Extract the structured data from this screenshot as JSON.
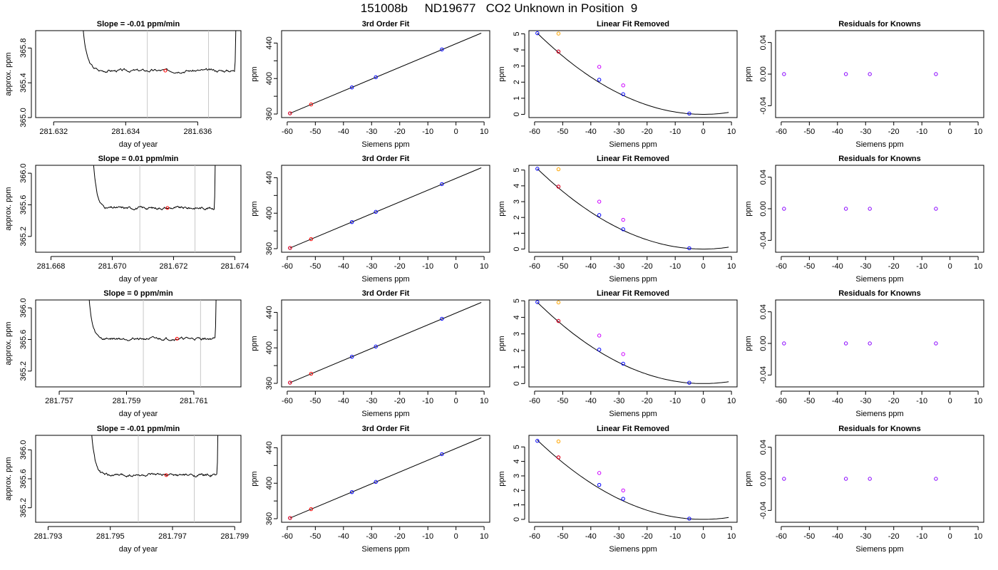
{
  "page": {
    "title": "151008b     ND19677   CO2 Unknown in Position  9"
  },
  "style": {
    "trace_color": "#000000",
    "window_color": "#c8c8c8",
    "point_red": "#ff0000",
    "point_blue": "#0000ff",
    "point_orange": "#ffa500",
    "point_magenta": "#cc00ff",
    "point_purple": "#8800ff"
  },
  "chart_data": [
    {
      "type": "line",
      "panel": "trace",
      "row": 1,
      "title": "Slope =  -0.01  ppm/min",
      "xlabel": "day of year",
      "ylabel": "approx. ppm",
      "xlim": [
        281.6315,
        281.6372
      ],
      "ylim": [
        365.0,
        366.0
      ],
      "xticks": [
        281.632,
        281.634,
        281.636
      ],
      "xtick_labels": [
        "281.632",
        "281.634",
        "281.636"
      ],
      "yticks": [
        365.0,
        365.4,
        365.8
      ],
      "ytick_labels": [
        "365.0",
        "365.4",
        "365.8"
      ],
      "window": [
        281.6346,
        281.6363
      ],
      "marker": {
        "x": 281.6351,
        "y": 365.54
      },
      "trace": {
        "start": 281.6327,
        "end": 281.6371,
        "level": 365.54,
        "noise": 0.014,
        "rise_down": 0.55,
        "rise_up": 0.45
      }
    },
    {
      "type": "line",
      "panel": "fit",
      "row": 1,
      "title": "3rd Order Fit",
      "xlabel": "Siemens ppm",
      "ylabel": "ppm",
      "xlim": [
        -62,
        12
      ],
      "ylim": [
        356,
        454
      ],
      "xticks": [
        -60,
        -50,
        -40,
        -30,
        -20,
        -10,
        0,
        10
      ],
      "xtick_labels": [
        "-60",
        "-50",
        "-40",
        "-30",
        "-20",
        "-10",
        "0",
        "10"
      ],
      "yticks": [
        360,
        400,
        440
      ],
      "ytick_labels": [
        "360",
        "400",
        "440"
      ],
      "yminor": [
        380,
        420
      ],
      "line": {
        "x": [
          -59,
          9
        ],
        "y": [
          360.8,
          451.2
        ]
      },
      "points_blue": {
        "x": [
          -59,
          -37,
          -28.5,
          -5
        ],
        "y": [
          360.8,
          390,
          401.5,
          432.8
        ]
      },
      "points_red": {
        "x": [
          -59,
          -51.5
        ],
        "y": [
          360.8,
          370.8
        ]
      }
    },
    {
      "type": "scatter",
      "panel": "linear",
      "row": 1,
      "title": "Linear Fit Removed",
      "xlabel": "Siemens ppm",
      "ylabel": "ppm",
      "xlim": [
        -62,
        12
      ],
      "ylim": [
        -0.2,
        5.2
      ],
      "xticks": [
        -60,
        -50,
        -40,
        -30,
        -20,
        -10,
        0,
        10
      ],
      "xtick_labels": [
        "-60",
        "-50",
        "-40",
        "-30",
        "-20",
        "-10",
        "0",
        "10"
      ],
      "yticks": [
        0,
        1,
        2,
        3,
        4,
        5
      ],
      "ytick_labels": [
        "0",
        "1",
        "2",
        "3",
        "4",
        "5"
      ],
      "curve": {
        "a": 0.001448,
        "x0": 0,
        "xmin": -59,
        "xmax": 9
      },
      "points_blue": {
        "x": [
          -59,
          -51.5,
          -37,
          -28.5,
          -5
        ],
        "y": [
          5.04,
          3.9,
          2.15,
          1.25,
          0.05
        ]
      },
      "points_red": {
        "x": [
          -51.5
        ],
        "y": [
          3.9
        ]
      },
      "points_orange": {
        "x": [
          -51.5
        ],
        "y": [
          5.02
        ]
      },
      "points_magenta": {
        "x": [
          -37,
          -28.5
        ],
        "y": [
          2.95,
          1.8
        ]
      }
    },
    {
      "type": "scatter",
      "panel": "resid",
      "row": 1,
      "title": "Residuals for Knowns",
      "xlabel": "Siemens ppm",
      "ylabel": "ppm",
      "xlim": [
        -62,
        12
      ],
      "ylim": [
        -0.055,
        0.055
      ],
      "xticks": [
        -60,
        -50,
        -40,
        -30,
        -20,
        -10,
        0,
        10
      ],
      "xtick_labels": [
        "-60",
        "-50",
        "-40",
        "-30",
        "-20",
        "-10",
        "0",
        "10"
      ],
      "yticks": [
        -0.04,
        0,
        0.04
      ],
      "ytick_labels": [
        "-0.04",
        "0.00",
        "0.04"
      ],
      "points": {
        "x": [
          -59,
          -37,
          -28.5,
          -5
        ],
        "y": [
          0,
          0,
          0,
          0
        ]
      }
    },
    {
      "type": "line",
      "panel": "trace",
      "row": 2,
      "title": "Slope =  0.01  ppm/min",
      "xlabel": "day of year",
      "ylabel": "approx. ppm",
      "xlim": [
        281.6675,
        281.6742
      ],
      "ylim": [
        365.0,
        366.1
      ],
      "xticks": [
        281.668,
        281.67,
        281.672,
        281.674
      ],
      "xtick_labels": [
        "281.668",
        "281.670",
        "281.672",
        "281.674"
      ],
      "yticks": [
        365.2,
        365.6,
        366.0
      ],
      "ytick_labels": [
        "365.2",
        "365.6",
        "366.0"
      ],
      "window": [
        281.6709,
        281.6727
      ],
      "marker": {
        "x": 281.6718,
        "y": 365.56
      },
      "trace": {
        "start": 281.6693,
        "end": 281.6734,
        "level": 365.56,
        "noise": 0.014,
        "rise_down": 0.55,
        "rise_up": 0.55
      }
    },
    {
      "type": "line",
      "panel": "fit",
      "row": 2,
      "title": "3rd Order Fit",
      "xlabel": "Siemens ppm",
      "ylabel": "ppm",
      "xlim": [
        -62,
        12
      ],
      "ylim": [
        356,
        454
      ],
      "xticks": [
        -60,
        -50,
        -40,
        -30,
        -20,
        -10,
        0,
        10
      ],
      "xtick_labels": [
        "-60",
        "-50",
        "-40",
        "-30",
        "-20",
        "-10",
        "0",
        "10"
      ],
      "yticks": [
        360,
        400,
        440
      ],
      "ytick_labels": [
        "360",
        "400",
        "440"
      ],
      "yminor": [
        380,
        420
      ],
      "line": {
        "x": [
          -59,
          9
        ],
        "y": [
          360.8,
          451.2
        ]
      },
      "points_blue": {
        "x": [
          -59,
          -37,
          -28.5,
          -5
        ],
        "y": [
          360.8,
          390,
          401.5,
          432.8
        ]
      },
      "points_red": {
        "x": [
          -59,
          -51.5
        ],
        "y": [
          360.8,
          370.8
        ]
      }
    },
    {
      "type": "scatter",
      "panel": "linear",
      "row": 2,
      "title": "Linear Fit Removed",
      "xlabel": "Siemens ppm",
      "ylabel": "ppm",
      "xlim": [
        -62,
        12
      ],
      "ylim": [
        -0.2,
        5.3
      ],
      "xticks": [
        -60,
        -50,
        -40,
        -30,
        -20,
        -10,
        0,
        10
      ],
      "xtick_labels": [
        "-60",
        "-50",
        "-40",
        "-30",
        "-20",
        "-10",
        "0",
        "10"
      ],
      "yticks": [
        0,
        1,
        2,
        3,
        4,
        5
      ],
      "ytick_labels": [
        "0",
        "1",
        "2",
        "3",
        "4",
        "5"
      ],
      "curve": {
        "a": 0.00146,
        "x0": 0,
        "xmin": -59,
        "xmax": 9
      },
      "points_blue": {
        "x": [
          -59,
          -51.5,
          -37,
          -28.5,
          -5
        ],
        "y": [
          5.08,
          3.95,
          2.15,
          1.25,
          0.05
        ]
      },
      "points_red": {
        "x": [
          -51.5
        ],
        "y": [
          3.95
        ]
      },
      "points_orange": {
        "x": [
          -51.5
        ],
        "y": [
          5.05
        ]
      },
      "points_magenta": {
        "x": [
          -37,
          -28.5
        ],
        "y": [
          3.0,
          1.85
        ]
      }
    },
    {
      "type": "scatter",
      "panel": "resid",
      "row": 2,
      "title": "Residuals for Knowns",
      "xlabel": "Siemens ppm",
      "ylabel": "ppm",
      "xlim": [
        -62,
        12
      ],
      "ylim": [
        -0.055,
        0.055
      ],
      "xticks": [
        -60,
        -50,
        -40,
        -30,
        -20,
        -10,
        0,
        10
      ],
      "xtick_labels": [
        "-60",
        "-50",
        "-40",
        "-30",
        "-20",
        "-10",
        "0",
        "10"
      ],
      "yticks": [
        -0.04,
        0,
        0.04
      ],
      "ytick_labels": [
        "-0.04",
        "0.00",
        "0.04"
      ],
      "points": {
        "x": [
          -59,
          -37,
          -28.5,
          -5
        ],
        "y": [
          0,
          0,
          0,
          0
        ]
      }
    },
    {
      "type": "line",
      "panel": "trace",
      "row": 3,
      "title": "Slope =  0  ppm/min",
      "xlabel": "day of year",
      "ylabel": "approx. ppm",
      "xlim": [
        281.7563,
        281.7624
      ],
      "ylim": [
        365.0,
        366.1
      ],
      "xticks": [
        281.757,
        281.759,
        281.761
      ],
      "xtick_labels": [
        "281.757",
        "281.759",
        "281.761"
      ],
      "yticks": [
        365.2,
        365.6,
        366.0
      ],
      "ytick_labels": [
        "365.2",
        "365.6",
        "366.0"
      ],
      "window": [
        281.7595,
        281.7612
      ],
      "marker": {
        "x": 281.7605,
        "y": 365.61
      },
      "trace": {
        "start": 281.7578,
        "end": 281.7617,
        "level": 365.61,
        "noise": 0.014,
        "rise_down": 0.5,
        "rise_up": 0.5
      }
    },
    {
      "type": "line",
      "panel": "fit",
      "row": 3,
      "title": "3rd Order Fit",
      "xlabel": "Siemens ppm",
      "ylabel": "ppm",
      "xlim": [
        -62,
        12
      ],
      "ylim": [
        356,
        454
      ],
      "xticks": [
        -60,
        -50,
        -40,
        -30,
        -20,
        -10,
        0,
        10
      ],
      "xtick_labels": [
        "-60",
        "-50",
        "-40",
        "-30",
        "-20",
        "-10",
        "0",
        "10"
      ],
      "yticks": [
        360,
        400,
        440
      ],
      "ytick_labels": [
        "360",
        "400",
        "440"
      ],
      "yminor": [
        380,
        420
      ],
      "line": {
        "x": [
          -59,
          9
        ],
        "y": [
          360.8,
          451.2
        ]
      },
      "points_blue": {
        "x": [
          -59,
          -37,
          -28.5,
          -5
        ],
        "y": [
          360.8,
          390,
          401.5,
          432.8
        ]
      },
      "points_red": {
        "x": [
          -59,
          -51.5
        ],
        "y": [
          360.8,
          370.8
        ]
      }
    },
    {
      "type": "scatter",
      "panel": "linear",
      "row": 3,
      "title": "Linear Fit Removed",
      "xlabel": "Siemens ppm",
      "ylabel": "ppm",
      "xlim": [
        -62,
        12
      ],
      "ylim": [
        -0.2,
        5.05
      ],
      "xticks": [
        -60,
        -50,
        -40,
        -30,
        -20,
        -10,
        0,
        10
      ],
      "xtick_labels": [
        "-60",
        "-50",
        "-40",
        "-30",
        "-20",
        "-10",
        "0",
        "10"
      ],
      "yticks": [
        0,
        1,
        2,
        3,
        4,
        5
      ],
      "ytick_labels": [
        "0",
        "1",
        "2",
        "3",
        "4",
        "5"
      ],
      "curve": {
        "a": 0.00141,
        "x0": 0,
        "xmin": -59,
        "xmax": 9
      },
      "points_blue": {
        "x": [
          -59,
          -51.5,
          -37,
          -28.5,
          -5
        ],
        "y": [
          4.92,
          3.78,
          2.05,
          1.2,
          0.05
        ]
      },
      "points_red": {
        "x": [
          -51.5
        ],
        "y": [
          3.78
        ]
      },
      "points_orange": {
        "x": [
          -51.5
        ],
        "y": [
          4.9
        ]
      },
      "points_magenta": {
        "x": [
          -37,
          -28.5
        ],
        "y": [
          2.9,
          1.78
        ]
      }
    },
    {
      "type": "scatter",
      "panel": "resid",
      "row": 3,
      "title": "Residuals for Knowns",
      "xlabel": "Siemens ppm",
      "ylabel": "ppm",
      "xlim": [
        -62,
        12
      ],
      "ylim": [
        -0.055,
        0.055
      ],
      "xticks": [
        -60,
        -50,
        -40,
        -30,
        -20,
        -10,
        0,
        10
      ],
      "xtick_labels": [
        "-60",
        "-50",
        "-40",
        "-30",
        "-20",
        "-10",
        "0",
        "10"
      ],
      "yticks": [
        -0.04,
        0,
        0.04
      ],
      "ytick_labels": [
        "-0.04",
        "0.00",
        "0.04"
      ],
      "points": {
        "x": [
          -59,
          -37,
          -28.5,
          -5
        ],
        "y": [
          0,
          0,
          0,
          0
        ]
      }
    },
    {
      "type": "line",
      "panel": "trace",
      "row": 4,
      "title": "Slope =  -0.01  ppm/min",
      "xlabel": "day of year",
      "ylabel": "approx. ppm",
      "xlim": [
        281.7926,
        281.7992
      ],
      "ylim": [
        365.0,
        366.2
      ],
      "xticks": [
        281.793,
        281.795,
        281.797,
        281.799
      ],
      "xtick_labels": [
        "281.793",
        "281.795",
        "281.797",
        "281.799"
      ],
      "yticks": [
        365.2,
        365.6,
        366.0
      ],
      "ytick_labels": [
        "365.2",
        "365.6",
        "366.0"
      ],
      "window": [
        281.7959,
        281.7977
      ],
      "marker": {
        "x": 281.7968,
        "y": 365.65
      },
      "trace": {
        "start": 281.7943,
        "end": 281.7985,
        "level": 365.65,
        "noise": 0.016,
        "rise_down": 0.6,
        "rise_up": 0.6
      }
    },
    {
      "type": "line",
      "panel": "fit",
      "row": 4,
      "title": "3rd Order Fit",
      "xlabel": "Siemens ppm",
      "ylabel": "ppm",
      "xlim": [
        -62,
        12
      ],
      "ylim": [
        356,
        454
      ],
      "xticks": [
        -60,
        -50,
        -40,
        -30,
        -20,
        -10,
        0,
        10
      ],
      "xtick_labels": [
        "-60",
        "-50",
        "-40",
        "-30",
        "-20",
        "-10",
        "0",
        "10"
      ],
      "yticks": [
        360,
        400,
        440
      ],
      "ytick_labels": [
        "360",
        "400",
        "440"
      ],
      "yminor": [
        380,
        420
      ],
      "line": {
        "x": [
          -59,
          9
        ],
        "y": [
          360.8,
          451.2
        ]
      },
      "points_blue": {
        "x": [
          -59,
          -37,
          -28.5,
          -5
        ],
        "y": [
          360.8,
          390,
          401.5,
          432.8
        ]
      },
      "points_red": {
        "x": [
          -59,
          -51.5
        ],
        "y": [
          360.8,
          370.8
        ]
      }
    },
    {
      "type": "scatter",
      "panel": "linear",
      "row": 4,
      "title": "Linear Fit Removed",
      "xlabel": "Siemens ppm",
      "ylabel": "ppm",
      "xlim": [
        -62,
        12
      ],
      "ylim": [
        -0.2,
        5.8
      ],
      "xticks": [
        -60,
        -50,
        -40,
        -30,
        -20,
        -10,
        0,
        10
      ],
      "xtick_labels": [
        "-60",
        "-50",
        "-40",
        "-30",
        "-20",
        "-10",
        "0",
        "10"
      ],
      "yticks": [
        0,
        1,
        2,
        3,
        4,
        5
      ],
      "ytick_labels": [
        "0",
        "1",
        "2",
        "3",
        "4",
        "5"
      ],
      "curve": {
        "a": 0.00157,
        "x0": 0,
        "xmin": -59,
        "xmax": 9
      },
      "points_blue": {
        "x": [
          -59,
          -51.5,
          -37,
          -28.5,
          -5
        ],
        "y": [
          5.42,
          4.28,
          2.38,
          1.42,
          0.05
        ]
      },
      "points_red": {
        "x": [
          -51.5
        ],
        "y": [
          4.28
        ]
      },
      "points_orange": {
        "x": [
          -51.5
        ],
        "y": [
          5.38
        ]
      },
      "points_magenta": {
        "x": [
          -37,
          -28.5
        ],
        "y": [
          3.2,
          2.0
        ]
      }
    },
    {
      "type": "scatter",
      "panel": "resid",
      "row": 4,
      "title": "Residuals for Knowns",
      "xlabel": "Siemens ppm",
      "ylabel": "ppm",
      "xlim": [
        -62,
        12
      ],
      "ylim": [
        -0.055,
        0.055
      ],
      "xticks": [
        -60,
        -50,
        -40,
        -30,
        -20,
        -10,
        0,
        10
      ],
      "xtick_labels": [
        "-60",
        "-50",
        "-40",
        "-30",
        "-20",
        "-10",
        "0",
        "10"
      ],
      "yticks": [
        -0.04,
        0,
        0.04
      ],
      "ytick_labels": [
        "-0.04",
        "0.00",
        "0.04"
      ],
      "points": {
        "x": [
          -59,
          -37,
          -28.5,
          -5
        ],
        "y": [
          0,
          0,
          0,
          0
        ]
      }
    }
  ]
}
